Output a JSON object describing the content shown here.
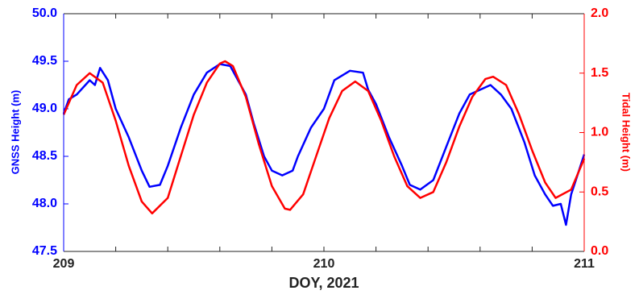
{
  "chart_data": {
    "type": "line",
    "xlabel": "DOY, 2021",
    "ylabel": "GNSS Height (m)",
    "y2label": "Tidal Height (m)",
    "xlim": [
      209,
      211
    ],
    "xticks": [
      209,
      210,
      211
    ],
    "xminor_ticks": [
      209.2,
      209.4,
      209.6,
      209.8,
      210.2,
      210.4,
      210.6,
      210.8
    ],
    "ylim": [
      47.5,
      50.0
    ],
    "yticks": [
      {
        "value": 47.5,
        "label": "47.5"
      },
      {
        "value": 48,
        "label": "48.0"
      },
      {
        "value": 48.5,
        "label": "48.5"
      },
      {
        "value": 49,
        "label": "49.0"
      },
      {
        "value": 49.5,
        "label": "49.5"
      },
      {
        "value": 50,
        "label": "50.0"
      }
    ],
    "y2lim": [
      0.0,
      2.0
    ],
    "y2ticks": [
      {
        "value": 0,
        "label": "0.0"
      },
      {
        "value": 0.5,
        "label": "0.5"
      },
      {
        "value": 1,
        "label": "1.0"
      },
      {
        "value": 1.5,
        "label": "1.5"
      },
      {
        "value": 2,
        "label": "2.0"
      }
    ],
    "ycolor": "#0000ff",
    "y2color": "#ff0000",
    "series": [
      {
        "color": "#0000ff",
        "x": [
          209.0,
          209.02,
          209.05,
          209.1,
          209.12,
          209.14,
          209.17,
          209.2,
          209.25,
          209.3,
          209.33,
          209.37,
          209.4,
          209.45,
          209.5,
          209.55,
          209.6,
          209.64,
          209.67,
          209.7,
          209.73,
          209.77,
          209.8,
          209.84,
          209.88,
          209.9,
          209.95,
          210.0,
          210.04,
          210.07,
          210.1,
          210.15,
          210.17,
          210.2,
          210.25,
          210.3,
          210.33,
          210.37,
          210.42,
          210.47,
          210.52,
          210.56,
          210.6,
          210.64,
          210.68,
          210.72,
          210.77,
          210.81,
          210.85,
          210.88,
          210.91,
          210.93,
          210.95,
          210.98,
          211.0
        ],
        "values": [
          48.95,
          49.1,
          49.15,
          49.3,
          49.25,
          49.43,
          49.3,
          49.0,
          48.7,
          48.35,
          48.18,
          48.2,
          48.4,
          48.8,
          49.15,
          49.38,
          49.47,
          49.45,
          49.3,
          49.15,
          48.85,
          48.5,
          48.35,
          48.3,
          48.35,
          48.5,
          48.8,
          49.0,
          49.3,
          49.35,
          49.4,
          49.38,
          49.2,
          49.05,
          48.7,
          48.4,
          48.2,
          48.15,
          48.25,
          48.6,
          48.95,
          49.15,
          49.2,
          49.25,
          49.15,
          49.0,
          48.65,
          48.3,
          48.1,
          47.98,
          48.0,
          47.78,
          48.1,
          48.35,
          48.52
        ]
      },
      {
        "color": "#ff0000",
        "axis": "y2",
        "x": [
          209.0,
          209.05,
          209.1,
          209.15,
          209.2,
          209.25,
          209.3,
          209.34,
          209.4,
          209.45,
          209.5,
          209.55,
          209.6,
          209.62,
          209.65,
          209.7,
          209.75,
          209.8,
          209.85,
          209.87,
          209.92,
          209.97,
          210.02,
          210.07,
          210.12,
          210.17,
          210.22,
          210.27,
          210.32,
          210.37,
          210.42,
          210.47,
          210.52,
          210.57,
          210.62,
          210.65,
          210.7,
          210.75,
          210.8,
          210.85,
          210.89,
          210.95,
          211.0
        ],
        "values": [
          1.15,
          1.4,
          1.5,
          1.42,
          1.1,
          0.72,
          0.42,
          0.32,
          0.45,
          0.8,
          1.15,
          1.42,
          1.58,
          1.6,
          1.56,
          1.3,
          0.9,
          0.55,
          0.36,
          0.35,
          0.48,
          0.8,
          1.12,
          1.35,
          1.43,
          1.35,
          1.1,
          0.8,
          0.55,
          0.45,
          0.5,
          0.75,
          1.05,
          1.3,
          1.45,
          1.47,
          1.4,
          1.15,
          0.85,
          0.58,
          0.45,
          0.52,
          0.78
        ]
      }
    ]
  }
}
